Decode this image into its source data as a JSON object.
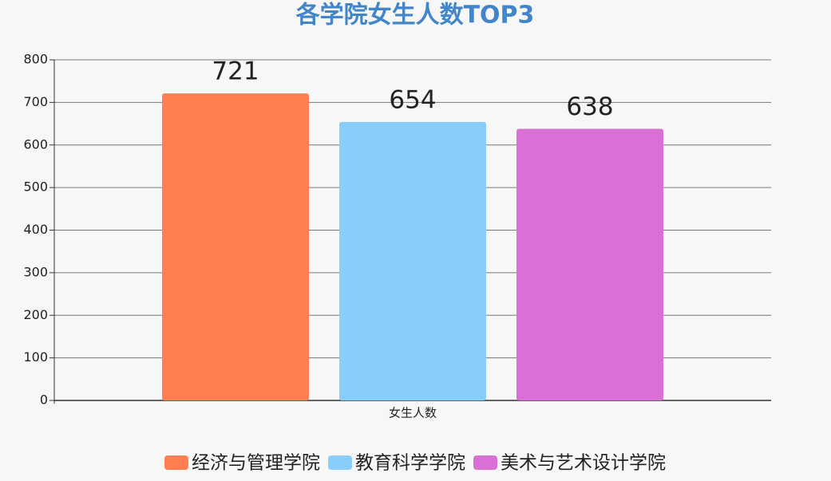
{
  "chart_data": {
    "type": "bar",
    "title": "各学院女生人数TOP3",
    "categories": [
      "女生人数"
    ],
    "series": [
      {
        "name": "经济与管理学院",
        "color": "#ff7f50",
        "values": [
          721
        ]
      },
      {
        "name": "教育科学学院",
        "color": "#87cefa",
        "values": [
          654
        ]
      },
      {
        "name": "美术与艺术设计学院",
        "color": "#da70d6",
        "values": [
          638
        ]
      }
    ],
    "ylim": [
      0,
      800
    ],
    "yticks": [
      0,
      100,
      200,
      300,
      400,
      500,
      600,
      700,
      800
    ],
    "grid": true,
    "legend": "bottom"
  }
}
